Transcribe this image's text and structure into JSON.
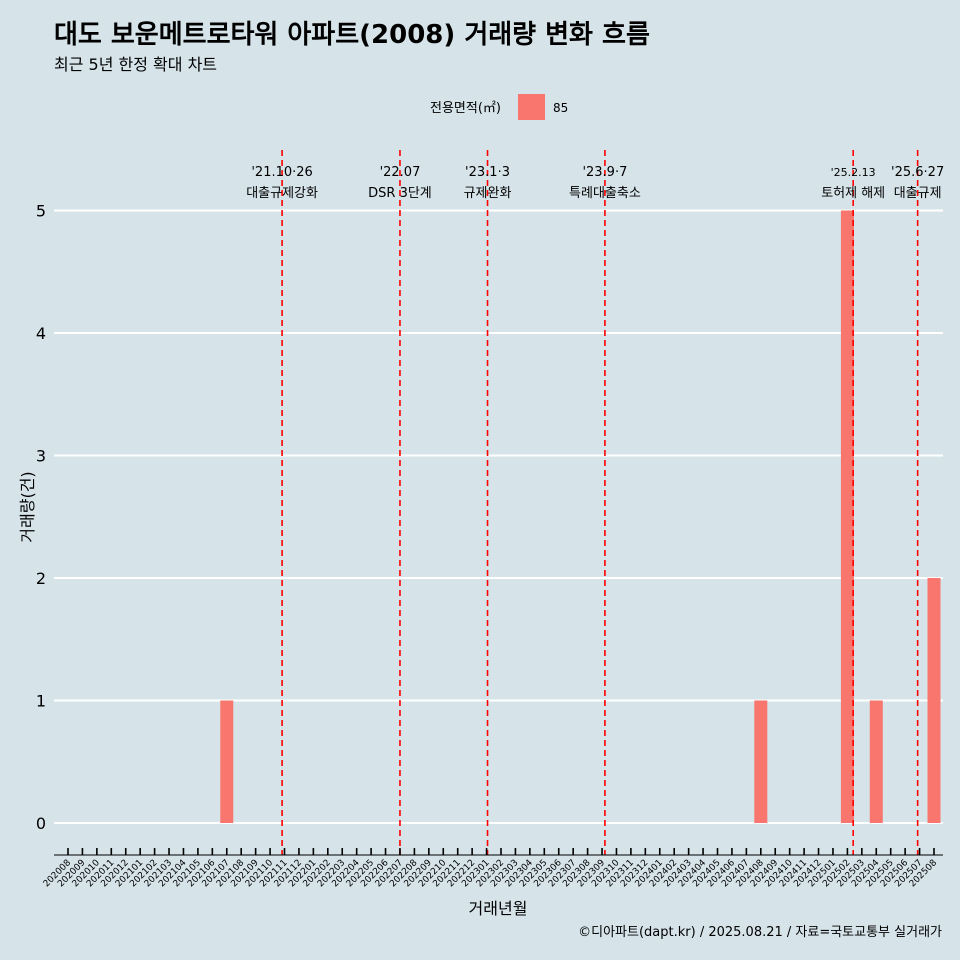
{
  "title": "대도 보운메트로타워 아파트(2008) 거래량 변화 흐름",
  "subtitle": "최근 5년 한정 확대 차트",
  "caption": "©디아파트(dapt.kr) / 2025.08.21 / 자료=국토교통부 실거래가",
  "colors": {
    "background": "#d6e4ea",
    "bar": "#f8766d",
    "event_line": "#ff0000",
    "grid": "#ffffff"
  },
  "chart_data": {
    "type": "bar",
    "xlabel": "거래년월",
    "ylabel": "거래량(건)",
    "ylim": [
      0,
      5
    ],
    "yticks": [
      0,
      1,
      2,
      3,
      4,
      5
    ],
    "legend": {
      "title": "전용면적(㎡)",
      "position": "top"
    },
    "categories": [
      "202008",
      "202009",
      "202010",
      "202011",
      "202012",
      "202101",
      "202102",
      "202103",
      "202104",
      "202105",
      "202106",
      "202107",
      "202108",
      "202109",
      "202110",
      "202111",
      "202112",
      "202201",
      "202202",
      "202203",
      "202204",
      "202205",
      "202206",
      "202207",
      "202208",
      "202209",
      "202210",
      "202211",
      "202212",
      "202301",
      "202302",
      "202303",
      "202304",
      "202305",
      "202306",
      "202307",
      "202308",
      "202309",
      "202310",
      "202311",
      "202312",
      "202401",
      "202402",
      "202403",
      "202404",
      "202405",
      "202406",
      "202407",
      "202408",
      "202409",
      "202410",
      "202411",
      "202412",
      "202501",
      "202502",
      "202503",
      "202504",
      "202505",
      "202506",
      "202507",
      "202508"
    ],
    "series": [
      {
        "name": "85",
        "values": [
          0,
          0,
          0,
          0,
          0,
          0,
          0,
          0,
          0,
          0,
          0,
          1,
          0,
          0,
          0,
          0,
          0,
          0,
          0,
          0,
          0,
          0,
          0,
          0,
          0,
          0,
          0,
          0,
          0,
          0,
          0,
          0,
          0,
          0,
          0,
          0,
          0,
          0,
          0,
          0,
          0,
          0,
          0,
          0,
          0,
          0,
          0,
          0,
          1,
          0,
          0,
          0,
          0,
          0,
          5,
          0,
          1,
          0,
          0,
          0,
          2
        ]
      }
    ],
    "events": [
      {
        "date": "2021-10-26",
        "line1": "'21.10·26",
        "line2": "대출규제강화"
      },
      {
        "date": "2022-07-01",
        "line1": "'22.07",
        "line2": "DSR 3단계"
      },
      {
        "date": "2023-01-03",
        "line1": "'23.1·3",
        "line2": "규제완화"
      },
      {
        "date": "2023-09-07",
        "line1": "'23.9·7",
        "line2": "특례대출축소"
      },
      {
        "date": "2025-02-13",
        "line1": "'25.2.13",
        "line2": "토허제 해제"
      },
      {
        "date": "2025-06-27",
        "line1": "'25.6·27",
        "line2": "대출규제"
      }
    ]
  }
}
